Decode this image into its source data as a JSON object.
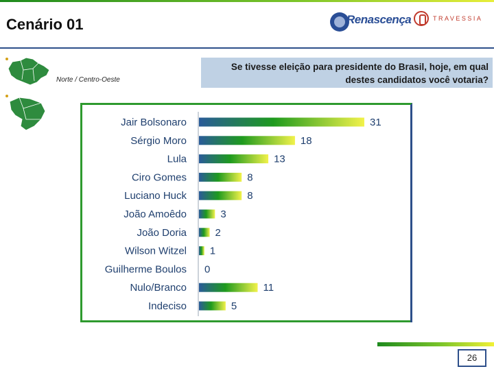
{
  "slide": {
    "title": "Cenário 01",
    "region": "Norte / Centro-Oeste",
    "question": "Se tivesse eleição para presidente do Brasil, hoje, em qual destes candidatos você votaria?",
    "page_number": "26"
  },
  "logos": {
    "renascenca": "Renascença",
    "travessia": "TRAVESSIA"
  },
  "colors": {
    "bar_start": "#2a5b99",
    "bar_mid": "#1e9a1e",
    "bar_end": "#f2f24a",
    "frame_green": "#2e9a2e",
    "frame_blue": "#2d4f8a",
    "label_blue": "#1f3f6e"
  },
  "chart_data": {
    "type": "bar",
    "orientation": "horizontal",
    "categories": [
      "Jair Bolsonaro",
      "Sérgio Moro",
      "Lula",
      "Ciro Gomes",
      "Luciano Huck",
      "João Amoêdo",
      "João Doria",
      "Wilson Witzel",
      "Guilherme Boulos",
      "Nulo/Branco",
      "Indeciso"
    ],
    "values": [
      31,
      18,
      13,
      8,
      8,
      3,
      2,
      1,
      0,
      11,
      5
    ],
    "xlim": [
      0,
      31
    ],
    "grid": false,
    "data_labels": true
  }
}
